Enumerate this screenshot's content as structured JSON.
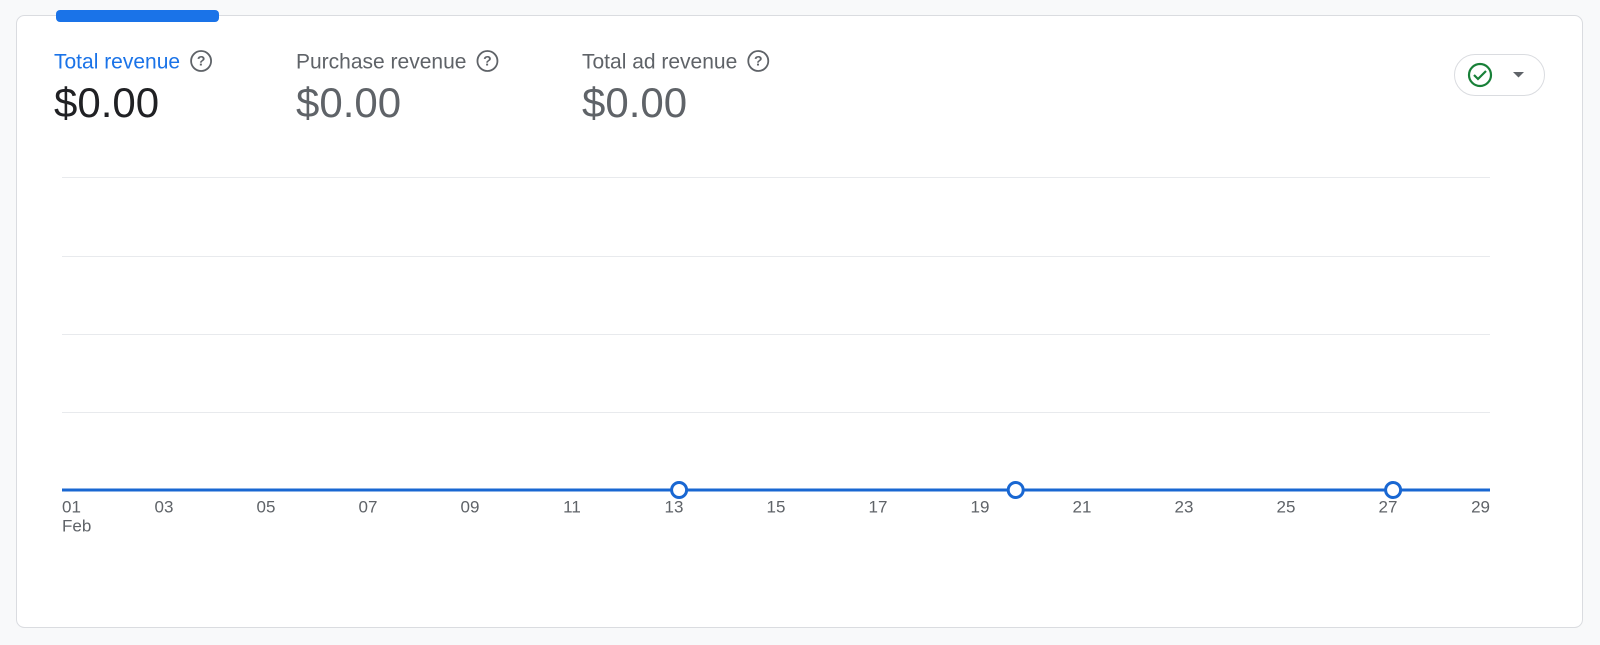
{
  "metrics": [
    {
      "label": "Total revenue",
      "value": "$0.00"
    },
    {
      "label": "Purchase revenue",
      "value": "$0.00"
    },
    {
      "label": "Total ad revenue",
      "value": "$0.00"
    }
  ],
  "chart_data": {
    "type": "line",
    "x": [
      1,
      2,
      3,
      4,
      5,
      6,
      7,
      8,
      9,
      10,
      11,
      12,
      13,
      14,
      15,
      16,
      17,
      18,
      19,
      20,
      21,
      22,
      23,
      24,
      25,
      26,
      27,
      28,
      29
    ],
    "series": [
      {
        "color": "#1967d2",
        "values": [
          0,
          0,
          0,
          0,
          0,
          0,
          0,
          0,
          0,
          0,
          0,
          0,
          0,
          0,
          0,
          0,
          0,
          0,
          0,
          0,
          0,
          0,
          0,
          0,
          0,
          0,
          0,
          0,
          0
        ]
      }
    ],
    "xlim": [
      1,
      29
    ],
    "xticks": [
      {
        "value": 1,
        "label": "01"
      },
      {
        "value": 3,
        "label": "03"
      },
      {
        "value": 5,
        "label": "05"
      },
      {
        "value": 7,
        "label": "07"
      },
      {
        "value": 9,
        "label": "09"
      },
      {
        "value": 11,
        "label": "11"
      },
      {
        "value": 13,
        "label": "13"
      },
      {
        "value": 15,
        "label": "15"
      },
      {
        "value": 17,
        "label": "17"
      },
      {
        "value": 19,
        "label": "19"
      },
      {
        "value": 21,
        "label": "21"
      },
      {
        "value": 23,
        "label": "23"
      },
      {
        "value": 25,
        "label": "25"
      },
      {
        "value": 27,
        "label": "27"
      },
      {
        "value": 29,
        "label": "29"
      }
    ],
    "x_month_label": "Feb",
    "ylim": [
      0,
      4
    ],
    "markers": {
      "x": [
        13.1,
        19.7,
        27.1
      ]
    }
  }
}
